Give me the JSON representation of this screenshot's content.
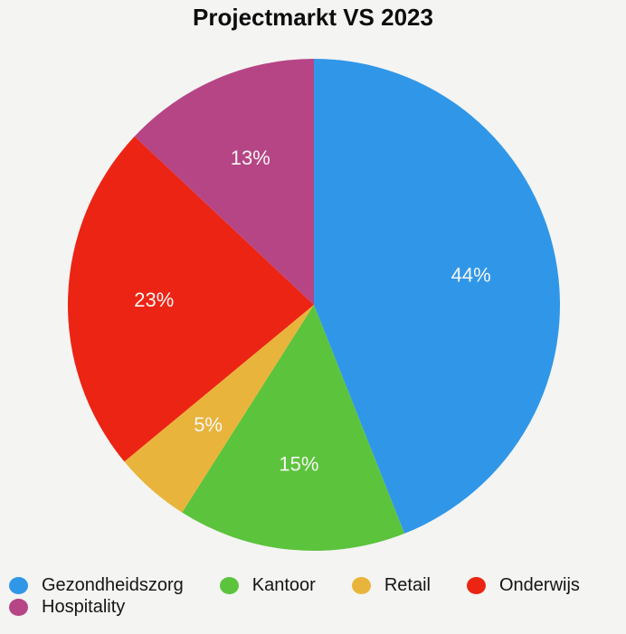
{
  "chart_data": {
    "type": "pie",
    "title": "Projectmarkt VS 2023",
    "categories": [
      "Gezondheidszorg",
      "Kantoor",
      "Retail",
      "Onderwijs",
      "Hospitality"
    ],
    "values": [
      44,
      15,
      5,
      23,
      13
    ],
    "slice_labels": [
      "44%",
      "15%",
      "5%",
      "23%",
      "13%"
    ],
    "colors": [
      "#3097E8",
      "#5CC33C",
      "#E9B43C",
      "#EC2414",
      "#B64586"
    ],
    "start_angle_deg": 0,
    "direction": "clockwise",
    "legend_position": "bottom",
    "background_color": "#F4F4F2",
    "title_color": "#0D0D0D",
    "slice_label_color": "#F6F6F4",
    "legend_text_color": "#151515"
  }
}
